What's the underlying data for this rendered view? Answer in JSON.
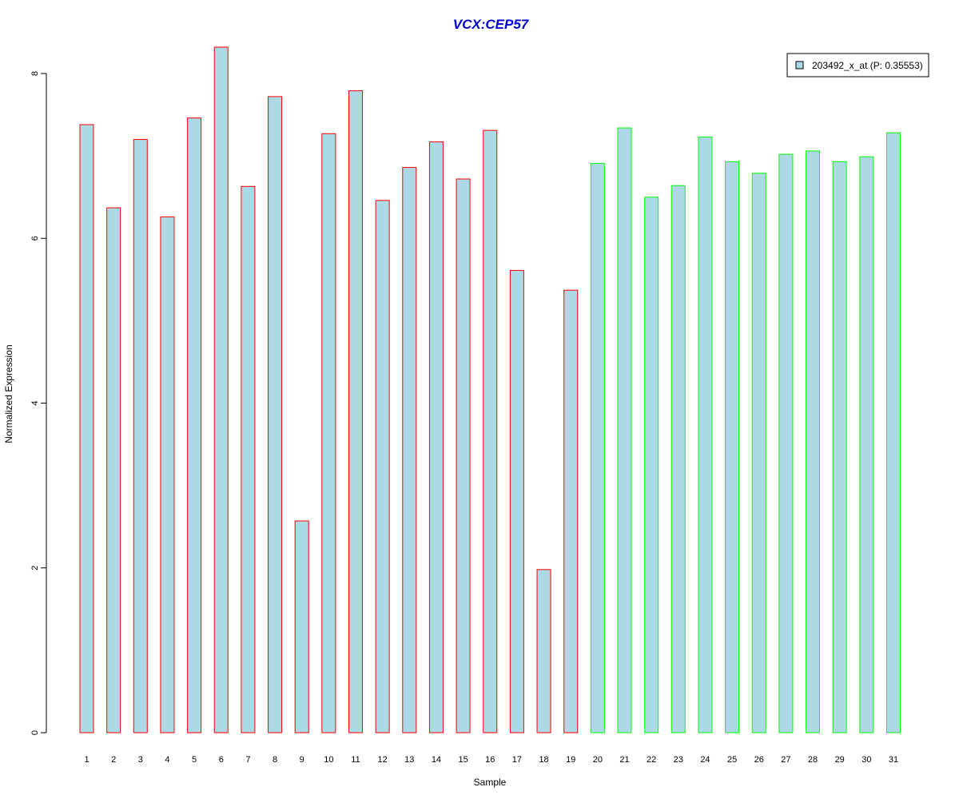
{
  "chart_data": {
    "type": "bar",
    "title": "VCX:CEP57",
    "xlabel": "Sample",
    "ylabel": "Normalized Expression",
    "categories": [
      "1",
      "2",
      "3",
      "4",
      "5",
      "6",
      "7",
      "8",
      "9",
      "10",
      "11",
      "12",
      "13",
      "14",
      "15",
      "16",
      "17",
      "18",
      "19",
      "20",
      "21",
      "22",
      "23",
      "24",
      "25",
      "26",
      "27",
      "28",
      "29",
      "30",
      "31"
    ],
    "series": [
      {
        "name": "203492_x_at (P: 0.35553)",
        "values": [
          7.38,
          6.37,
          7.2,
          6.26,
          7.46,
          8.32,
          6.63,
          7.72,
          2.57,
          7.27,
          7.79,
          6.46,
          6.86,
          7.17,
          6.72,
          7.31,
          5.61,
          1.98,
          5.37,
          6.91,
          7.34,
          6.5,
          6.64,
          7.23,
          6.93,
          6.79,
          7.02,
          7.06,
          6.93,
          6.99,
          7.28
        ]
      }
    ],
    "group_colors": [
      "#FF0000",
      "#FF0000",
      "#FF0000",
      "#FF0000",
      "#FF0000",
      "#FF0000",
      "#FF0000",
      "#FF0000",
      "#FF0000",
      "#FF0000",
      "#FF0000",
      "#FF0000",
      "#FF0000",
      "#FF0000",
      "#FF0000",
      "#FF0000",
      "#FF0000",
      "#FF0000",
      "#FF0000",
      "#00FF00",
      "#00FF00",
      "#00FF00",
      "#00FF00",
      "#00FF00",
      "#00FF00",
      "#00FF00",
      "#00FF00",
      "#00FF00",
      "#00FF00",
      "#00FF00",
      "#00FF00"
    ],
    "fill_color": "#ADD8E6",
    "title_color": "#0000CD",
    "ylim": [
      0,
      8.4
    ],
    "yticks": [
      "0",
      "2",
      "4",
      "6",
      "8"
    ],
    "grid": false,
    "legend_position": "top-right"
  }
}
